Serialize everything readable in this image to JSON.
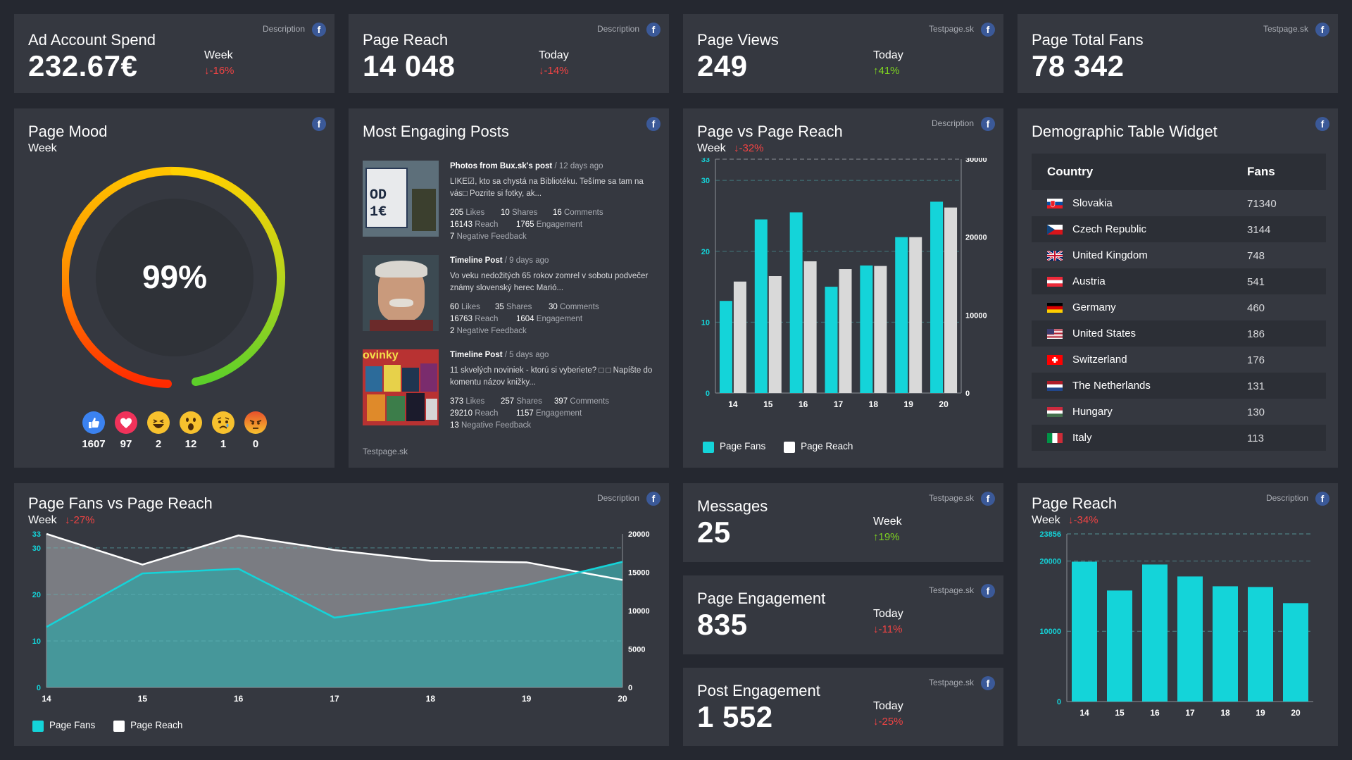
{
  "colors": {
    "background": "#252830",
    "card": "#353840",
    "cyan": "#14d4d9",
    "reach": "#d9d9d9",
    "down": "#f04343",
    "up": "#7ed321",
    "facebook": "#3b5998"
  },
  "facebook_icon_glyph": "f",
  "kpis": {
    "ad_spend": {
      "title": "Ad Account Spend",
      "value": "232.67€",
      "period": "Week",
      "change": "-16%",
      "direction": "down",
      "source": "Description"
    },
    "page_reach": {
      "title": "Page Reach",
      "value": "14 048",
      "period": "Today",
      "change": "-14%",
      "direction": "down",
      "source": "Description"
    },
    "page_views": {
      "title": "Page Views",
      "value": "249",
      "period": "Today",
      "change": "41%",
      "direction": "up",
      "source": "Testpage.sk"
    },
    "total_fans": {
      "title": "Page Total Fans",
      "value": "78 342",
      "source": "Testpage.sk"
    },
    "messages": {
      "title": "Messages",
      "value": "25",
      "period": "Week",
      "change": "19%",
      "direction": "up",
      "source": "Testpage.sk"
    },
    "page_engagement": {
      "title": "Page Engagement",
      "value": "835",
      "period": "Today",
      "change": "-11%",
      "direction": "down",
      "source": "Testpage.sk"
    },
    "post_engagement": {
      "title": "Post Engagement",
      "value": "1 552",
      "period": "Today",
      "change": "-25%",
      "direction": "down",
      "source": "Testpage.sk"
    }
  },
  "page_mood": {
    "title": "Page Mood",
    "period": "Week",
    "value_label": "99%",
    "value": 99,
    "reactions": [
      {
        "name": "like",
        "count": "1607"
      },
      {
        "name": "love",
        "count": "97"
      },
      {
        "name": "haha",
        "count": "2"
      },
      {
        "name": "wow",
        "count": "12"
      },
      {
        "name": "sad",
        "count": "1"
      },
      {
        "name": "angry",
        "count": "0"
      }
    ]
  },
  "posts": {
    "title": "Most Engaging Posts",
    "source": "Testpage.sk",
    "items": [
      {
        "author": "Photos from Bux.sk's post",
        "ago": "/ 12 days ago",
        "text": "LIKE☑, kto sa chystá na Bibliotéku. Tešíme sa tam na vás□ Pozrite si fotky, ak...",
        "likes": "205",
        "likes_label": "Likes",
        "shares": "10",
        "shares_label": "Shares",
        "comments": "16",
        "comments_label": "Comments",
        "reach": "16143",
        "reach_label": "Reach",
        "engagement": "1765",
        "engagement_label": "Engagement",
        "negative": "7",
        "negative_label": "Negative Feedback",
        "thumb_text": "OD 1€"
      },
      {
        "author": "Timeline Post",
        "ago": "/ 9 days ago",
        "text": "Vo veku nedožitých 65 rokov zomrel v sobotu podvečer známy slovenský herec Marió...",
        "likes": "60",
        "likes_label": "Likes",
        "shares": "35",
        "shares_label": "Shares",
        "comments": "30",
        "comments_label": "Comments",
        "reach": "16763",
        "reach_label": "Reach",
        "engagement": "1604",
        "engagement_label": "Engagement",
        "negative": "2",
        "negative_label": "Negative Feedback",
        "thumb_text": ""
      },
      {
        "author": "Timeline Post",
        "ago": "/ 5 days ago",
        "text": "11 skvelých noviniek - ktorú si vyberiete? □ □ Napíšte do komentu názov knižky...",
        "likes": "373",
        "likes_label": "Likes",
        "shares": "257",
        "shares_label": "Shares",
        "comments": "397",
        "comments_label": "Comments",
        "reach": "29210",
        "reach_label": "Reach",
        "engagement": "1157",
        "engagement_label": "Engagement",
        "negative": "13",
        "negative_label": "Negative Feedback",
        "thumb_text": "ovinky"
      }
    ]
  },
  "page_vs_reach": {
    "title": "Page vs Page Reach",
    "period": "Week",
    "change": "-32%",
    "source": "Description",
    "legend": [
      "Page Fans",
      "Page Reach"
    ]
  },
  "demographic": {
    "title": "Demographic Table Widget",
    "col_country": "Country",
    "col_fans": "Fans",
    "rows": [
      {
        "country": "Slovakia",
        "fans": "71340",
        "flag": "sk"
      },
      {
        "country": "Czech Republic",
        "fans": "3144",
        "flag": "cz"
      },
      {
        "country": "United Kingdom",
        "fans": "748",
        "flag": "gb"
      },
      {
        "country": "Austria",
        "fans": "541",
        "flag": "at"
      },
      {
        "country": "Germany",
        "fans": "460",
        "flag": "de"
      },
      {
        "country": "United States",
        "fans": "186",
        "flag": "us"
      },
      {
        "country": "Switzerland",
        "fans": "176",
        "flag": "ch"
      },
      {
        "country": "The Netherlands",
        "fans": "131",
        "flag": "nl"
      },
      {
        "country": "Hungary",
        "fans": "130",
        "flag": "hu"
      },
      {
        "country": "Italy",
        "fans": "113",
        "flag": "it"
      }
    ]
  },
  "fans_vs_reach": {
    "title": "Page Fans vs Page Reach",
    "period": "Week",
    "change": "-27%",
    "source": "Description",
    "legend": [
      "Page Fans",
      "Page Reach"
    ]
  },
  "reach_bars": {
    "title": "Page Reach",
    "period": "Week",
    "change": "-34%",
    "source": "Description"
  },
  "chart_data": [
    {
      "id": "page_vs_reach",
      "type": "bar",
      "title": "Page vs Page Reach",
      "categories": [
        "14",
        "15",
        "16",
        "17",
        "18",
        "19",
        "20"
      ],
      "series": [
        {
          "name": "Page Fans",
          "axis": "left",
          "values": [
            13,
            24.5,
            25.5,
            15,
            18,
            22,
            27
          ]
        },
        {
          "name": "Page Reach",
          "axis": "right",
          "values": [
            14300,
            15000,
            16900,
            15900,
            16300,
            20000,
            23800
          ]
        }
      ],
      "ylim_left": [
        0,
        33
      ],
      "yticks_left": [
        "0",
        "10",
        "20",
        "30",
        "33"
      ],
      "ylim_right": [
        0,
        30000
      ],
      "yticks_right": [
        "0",
        "10000",
        "20000",
        "30000"
      ],
      "legend": "bottom-left"
    },
    {
      "id": "fans_vs_reach",
      "type": "area",
      "title": "Page Fans vs Page Reach",
      "categories": [
        "14",
        "15",
        "16",
        "17",
        "18",
        "19",
        "20"
      ],
      "series": [
        {
          "name": "Page Fans",
          "axis": "left",
          "values": [
            13,
            24.5,
            25.5,
            15,
            18,
            22,
            27
          ]
        },
        {
          "name": "Page Reach",
          "axis": "right",
          "values": [
            20000,
            16000,
            19800,
            17900,
            16500,
            16300,
            14000
          ]
        }
      ],
      "ylim_left": [
        0,
        33
      ],
      "yticks_left": [
        "0",
        "10",
        "20",
        "30",
        "33"
      ],
      "ylim_right": [
        0,
        20000
      ],
      "yticks_right": [
        "0",
        "5000",
        "10000",
        "15000",
        "20000"
      ],
      "legend": "bottom-left"
    },
    {
      "id": "reach_bars",
      "type": "bar",
      "title": "Page Reach",
      "categories": [
        "14",
        "15",
        "16",
        "17",
        "18",
        "19",
        "20"
      ],
      "values": [
        19900,
        15800,
        19500,
        17800,
        16400,
        16300,
        14000
      ],
      "ylim": [
        0,
        23856
      ],
      "yticks": [
        "0",
        "10000",
        "20000",
        "23856"
      ]
    }
  ]
}
